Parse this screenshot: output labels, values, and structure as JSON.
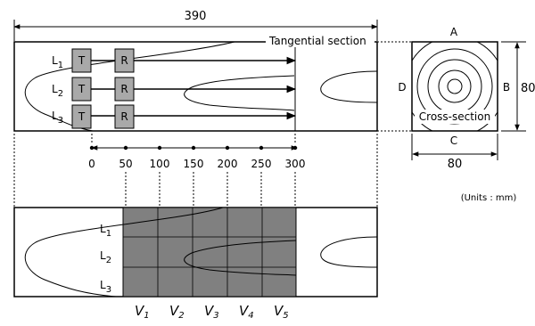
{
  "dimensions": {
    "length": "390",
    "width": "80",
    "height": "80"
  },
  "labels": {
    "tangential_section": "Tangential section",
    "cross_section": "Cross-section",
    "units": "(Units : mm)"
  },
  "faces": {
    "top": "A",
    "right": "B",
    "bottom": "C",
    "left": "D"
  },
  "lines": [
    "L1",
    "L2",
    "L3"
  ],
  "line_names": [
    {
      "base": "L",
      "sub": "1"
    },
    {
      "base": "L",
      "sub": "2"
    },
    {
      "base": "L",
      "sub": "3"
    }
  ],
  "transducers": {
    "tangential": "T",
    "radial": "R"
  },
  "scale_ticks": [
    "0",
    "50",
    "100",
    "150",
    "200",
    "250",
    "300"
  ],
  "zones": [
    {
      "base": "V",
      "sub": "1"
    },
    {
      "base": "V",
      "sub": "2"
    },
    {
      "base": "V",
      "sub": "3"
    },
    {
      "base": "V",
      "sub": "4"
    },
    {
      "base": "V",
      "sub": "5"
    }
  ],
  "colors": {
    "zone_fill": "#808080",
    "transducer_fill": "#a9a9a9",
    "stroke": "#000000"
  }
}
